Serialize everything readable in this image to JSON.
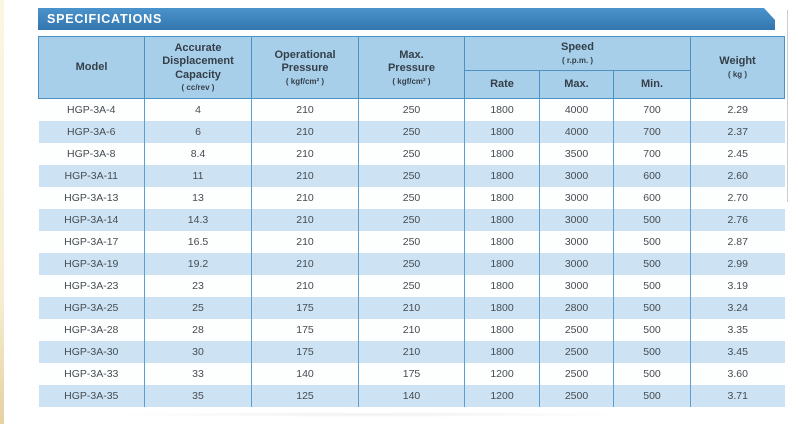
{
  "theme": {
    "banner_blue": "#3b82bd",
    "header_bg": "#a8cfe9",
    "border_blue": "#4c92c4",
    "row_alt_bg": "#cde3f3",
    "row_bg": "#fdfefe",
    "text_dark": "#454c53",
    "banner_text": "#ffffff",
    "edge_strip": "#f7f2da"
  },
  "banner": {
    "title": "SPECIFICATIONS"
  },
  "table": {
    "column_ids": [
      "model",
      "capacity",
      "operational_pressure",
      "max_pressure",
      "speed_rate",
      "speed_max",
      "speed_min",
      "weight"
    ],
    "header": {
      "model": {
        "label": "Model",
        "caption": ""
      },
      "capacity": {
        "label": "Accurate\nDisplacement\nCapacity",
        "caption": "( cc/rev )"
      },
      "op_pressure": {
        "label": "Operational\nPressure",
        "caption": "( kgf/cm² )"
      },
      "max_pressure": {
        "label": "Max.\nPressure",
        "caption": "( kgf/cm² )"
      },
      "speed": {
        "label": "Speed",
        "caption": "( r.p.m. )",
        "sub": [
          "Rate",
          "Max.",
          "Min."
        ]
      },
      "weight": {
        "label": "Weight",
        "caption": "( kg )"
      }
    },
    "rows": [
      [
        "HGP-3A-4",
        "4",
        "210",
        "250",
        "1800",
        "4000",
        "700",
        "2.29"
      ],
      [
        "HGP-3A-6",
        "6",
        "210",
        "250",
        "1800",
        "4000",
        "700",
        "2.37"
      ],
      [
        "HGP-3A-8",
        "8.4",
        "210",
        "250",
        "1800",
        "3500",
        "700",
        "2.45"
      ],
      [
        "HGP-3A-11",
        "11",
        "210",
        "250",
        "1800",
        "3000",
        "600",
        "2.60"
      ],
      [
        "HGP-3A-13",
        "13",
        "210",
        "250",
        "1800",
        "3000",
        "600",
        "2.70"
      ],
      [
        "HGP-3A-14",
        "14.3",
        "210",
        "250",
        "1800",
        "3000",
        "500",
        "2.76"
      ],
      [
        "HGP-3A-17",
        "16.5",
        "210",
        "250",
        "1800",
        "3000",
        "500",
        "2.87"
      ],
      [
        "HGP-3A-19",
        "19.2",
        "210",
        "250",
        "1800",
        "3000",
        "500",
        "2.99"
      ],
      [
        "HGP-3A-23",
        "23",
        "210",
        "250",
        "1800",
        "3000",
        "500",
        "3.19"
      ],
      [
        "HGP-3A-25",
        "25",
        "175",
        "210",
        "1800",
        "2800",
        "500",
        "3.24"
      ],
      [
        "HGP-3A-28",
        "28",
        "175",
        "210",
        "1800",
        "2500",
        "500",
        "3.35"
      ],
      [
        "HGP-3A-30",
        "30",
        "175",
        "210",
        "1800",
        "2500",
        "500",
        "3.45"
      ],
      [
        "HGP-3A-33",
        "33",
        "140",
        "175",
        "1200",
        "2500",
        "500",
        "3.60"
      ],
      [
        "HGP-3A-35",
        "35",
        "125",
        "140",
        "1200",
        "2500",
        "500",
        "3.71"
      ]
    ]
  }
}
